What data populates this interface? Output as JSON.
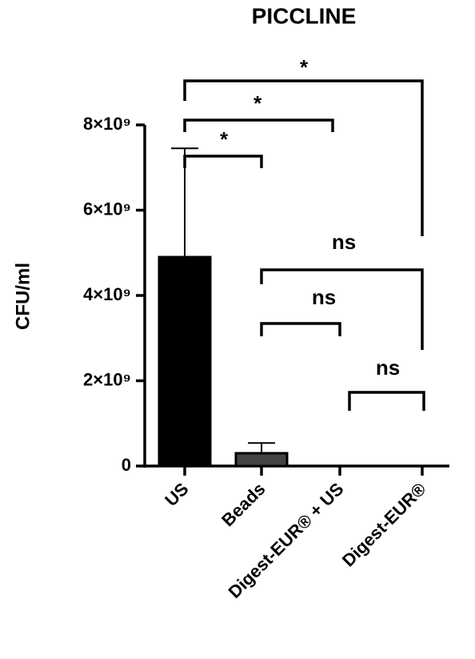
{
  "chart_data": {
    "type": "bar",
    "title": "PICCLINE",
    "y_label": "CFU/ml",
    "categories": [
      "US",
      "Beads",
      "Digest-EUR® + US",
      "Digest-EUR®"
    ],
    "values": [
      4900000000,
      300000000,
      0,
      0
    ],
    "errors": [
      2550000000,
      240000000,
      0,
      0
    ],
    "colors": [
      "#000000",
      "#444444",
      "#000000",
      "#000000"
    ],
    "ylim": [
      0,
      8000000000
    ],
    "yticks": [
      {
        "value": 0,
        "label": "0"
      },
      {
        "value": 2000000000,
        "label": "2×10⁹"
      },
      {
        "value": 4000000000,
        "label": "4×10⁹"
      },
      {
        "value": 6000000000,
        "label": "6×10⁹"
      },
      {
        "value": 8000000000,
        "label": "8×10⁹"
      }
    ],
    "annotations": [
      "*",
      "*",
      "*",
      "ns",
      "ns",
      "ns"
    ]
  }
}
